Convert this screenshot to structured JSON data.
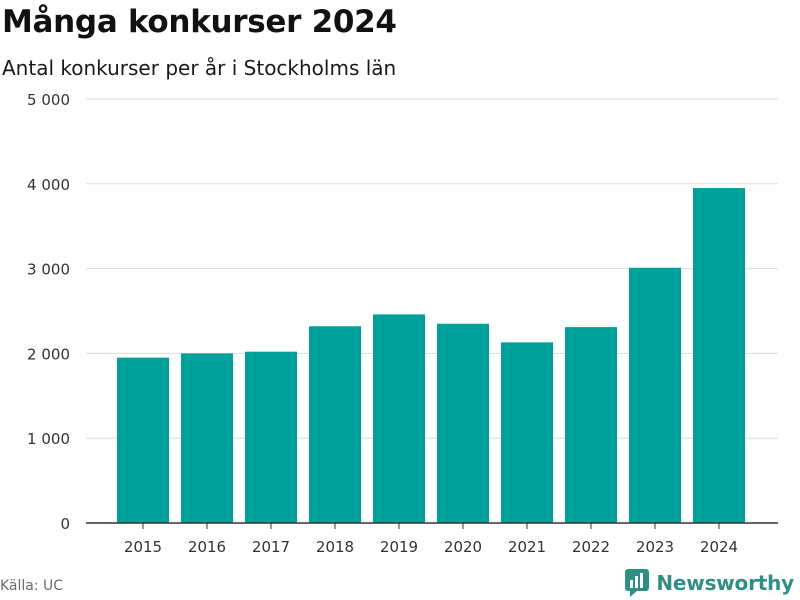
{
  "title": "Många konkurser 2024",
  "subtitle": "Antal konkurser per år i Stockholms län",
  "source": "Källa: UC",
  "brand": {
    "name": "Newsworthy",
    "icon": "newsworthy-logo-icon",
    "color": "#2f8f84"
  },
  "chart_data": {
    "type": "bar",
    "categories": [
      "2015",
      "2016",
      "2017",
      "2018",
      "2019",
      "2020",
      "2021",
      "2022",
      "2023",
      "2024"
    ],
    "values": [
      1950,
      2000,
      2020,
      2320,
      2460,
      2350,
      2130,
      2310,
      3010,
      3950
    ],
    "yticks": [
      0,
      1000,
      2000,
      3000,
      4000,
      5000
    ],
    "ytick_labels": [
      "0",
      "1 000",
      "2 000",
      "3 000",
      "4 000",
      "5 000"
    ],
    "ylim": [
      0,
      5000
    ],
    "grid": true,
    "bar_color": "#00a19a",
    "grid_color": "#dddddd",
    "axis_color": "#333333"
  }
}
